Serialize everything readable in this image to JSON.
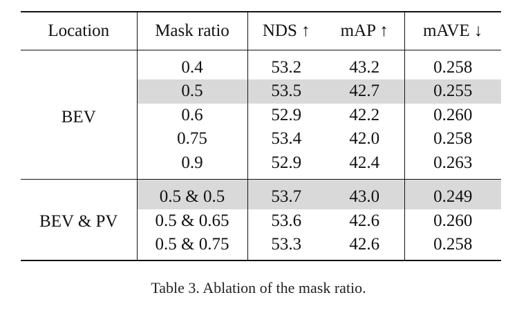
{
  "table": {
    "headers": {
      "location": "Location",
      "mask_ratio": "Mask ratio",
      "nds": "NDS ↑",
      "map": "mAP ↑",
      "mave": "mAVE ↓"
    },
    "groups": [
      {
        "location": "BEV",
        "rows": [
          {
            "mask": "0.4",
            "nds": "53.2",
            "map": "43.2",
            "mave": "0.258"
          },
          {
            "mask": "0.5",
            "nds": "53.5",
            "map": "42.7",
            "mave": "0.255",
            "highlight": true
          },
          {
            "mask": "0.6",
            "nds": "52.9",
            "map": "42.2",
            "mave": "0.260"
          },
          {
            "mask": "0.75",
            "nds": "53.4",
            "map": "42.0",
            "mave": "0.258"
          },
          {
            "mask": "0.9",
            "nds": "52.9",
            "map": "42.4",
            "mave": "0.263"
          }
        ]
      },
      {
        "location": "BEV & PV",
        "rows": [
          {
            "mask": "0.5 & 0.5",
            "nds": "53.7",
            "map": "43.0",
            "mave": "0.249",
            "highlight": true
          },
          {
            "mask": "0.5 & 0.65",
            "nds": "53.6",
            "map": "42.6",
            "mave": "0.260"
          },
          {
            "mask": "0.5 & 0.75",
            "nds": "53.3",
            "map": "42.6",
            "mave": "0.258"
          }
        ]
      }
    ]
  },
  "caption": "Table 3. Ablation of the mask ratio.",
  "colors": {
    "highlight_bg": "#d9d9d9"
  }
}
